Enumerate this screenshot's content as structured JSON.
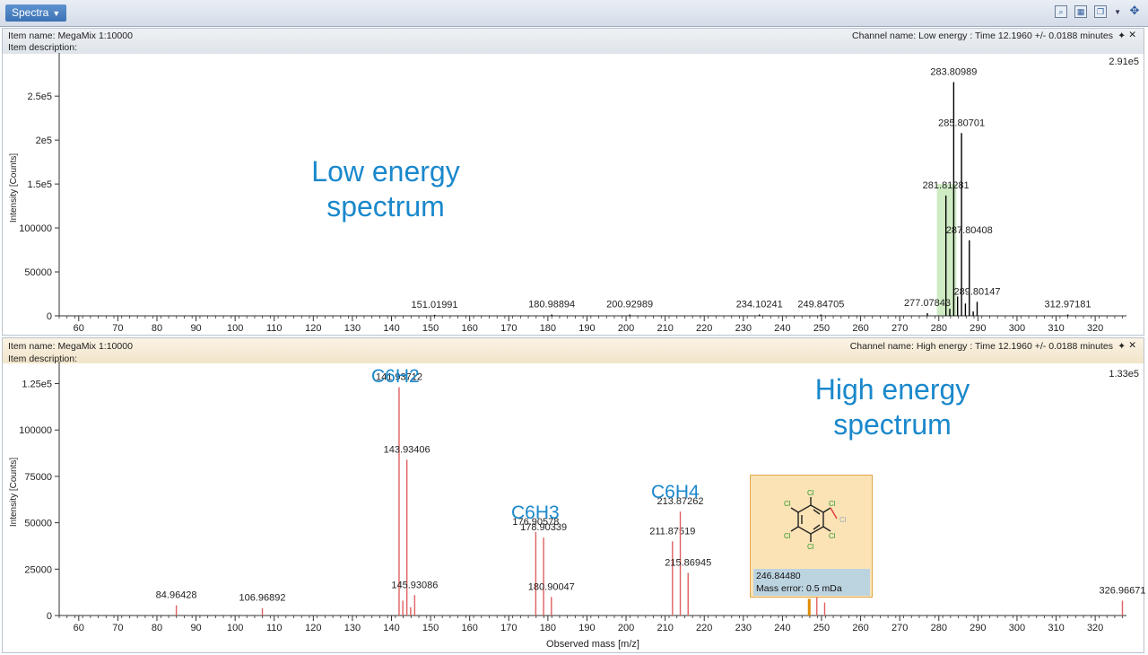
{
  "window": {
    "tab_label": "Spectra"
  },
  "panels": [
    {
      "item_name": "Item name: MegaMix 1:10000",
      "item_description": "Item description:",
      "channel": "Channel name: Low energy : Time 12.1960 +/- 0.0188 minutes"
    },
    {
      "item_name": "Item name: MegaMix 1:10000",
      "item_description": "Item description:",
      "channel": "Channel name: High energy : Time 12.1960 +/- 0.0188 minutes"
    }
  ],
  "annotations": {
    "low_energy": [
      "Low energy",
      "spectrum"
    ],
    "high_energy": [
      "High energy",
      "spectrum"
    ],
    "fragments": [
      {
        "label": "C6H2",
        "mass": 141.93712
      },
      {
        "label": "C6H3",
        "mass": 176.90578
      },
      {
        "label": "C6H4",
        "mass": 213.87262
      }
    ]
  },
  "popup": {
    "mass": "246.84480",
    "mass_error": "Mass error: 0.5 mDa",
    "accent": "#fbe3b6"
  },
  "colors": {
    "low_peaks": "#000000",
    "high_peaks": "#e06060",
    "annotation": "#1a88cc",
    "highlight": "#c6e8b8"
  },
  "chart_data": [
    {
      "type": "bar",
      "title": "",
      "xlabel": "",
      "ylabel": "Intensity [Counts]",
      "xlim": [
        55,
        328
      ],
      "ylim": [
        0,
        291000
      ],
      "max_label": "2.91e5",
      "x_ticks": [
        60,
        70,
        80,
        90,
        100,
        110,
        120,
        130,
        140,
        150,
        160,
        170,
        180,
        190,
        200,
        210,
        220,
        230,
        240,
        250,
        260,
        270,
        280,
        290,
        300,
        310,
        320
      ],
      "y_ticks": [
        {
          "value": 0,
          "label": "0"
        },
        {
          "value": 50000,
          "label": "50000"
        },
        {
          "value": 100000,
          "label": "100000"
        },
        {
          "value": 150000,
          "label": "1.5e5"
        },
        {
          "value": 200000,
          "label": "2e5"
        },
        {
          "value": 250000,
          "label": "2.5e5"
        }
      ],
      "highlight_range": [
        279.5,
        284.5
      ],
      "peaks": [
        {
          "x": 151.01991,
          "y": 1200,
          "label": "151.01991"
        },
        {
          "x": 180.98894,
          "y": 1500,
          "label": "180.98894"
        },
        {
          "x": 200.92989,
          "y": 1500,
          "label": "200.92989"
        },
        {
          "x": 234.10241,
          "y": 1500,
          "label": "234.10241"
        },
        {
          "x": 249.84705,
          "y": 1500,
          "label": "249.84705"
        },
        {
          "x": 277.07843,
          "y": 3000,
          "label": "277.07843"
        },
        {
          "x": 281.81281,
          "y": 137000,
          "label": "281.81281"
        },
        {
          "x": 282.8,
          "y": 8000
        },
        {
          "x": 283.80989,
          "y": 266000,
          "label": "283.80989"
        },
        {
          "x": 284.8,
          "y": 22000
        },
        {
          "x": 285.80701,
          "y": 208000,
          "label": "285.80701"
        },
        {
          "x": 286.8,
          "y": 14000
        },
        {
          "x": 287.80408,
          "y": 86000,
          "label": "287.80408"
        },
        {
          "x": 288.8,
          "y": 5000
        },
        {
          "x": 289.80147,
          "y": 16000,
          "label": "289.80147"
        },
        {
          "x": 312.97181,
          "y": 1500,
          "label": "312.97181"
        }
      ]
    },
    {
      "type": "bar",
      "title": "",
      "xlabel": "Observed mass [m/z]",
      "ylabel": "Intensity [Counts]",
      "xlim": [
        55,
        328
      ],
      "ylim": [
        0,
        133000
      ],
      "max_label": "1.33e5",
      "x_ticks": [
        60,
        70,
        80,
        90,
        100,
        110,
        120,
        130,
        140,
        150,
        160,
        170,
        180,
        190,
        200,
        210,
        220,
        230,
        240,
        250,
        260,
        270,
        280,
        290,
        300,
        310,
        320
      ],
      "y_ticks": [
        {
          "value": 0,
          "label": "0"
        },
        {
          "value": 25000,
          "label": "25000"
        },
        {
          "value": 50000,
          "label": "50000"
        },
        {
          "value": 75000,
          "label": "75000"
        },
        {
          "value": 100000,
          "label": "100000"
        },
        {
          "value": 125000,
          "label": "1.25e5"
        }
      ],
      "peaks": [
        {
          "x": 84.96428,
          "y": 5500,
          "label": "84.96428"
        },
        {
          "x": 106.96892,
          "y": 4000,
          "label": "106.96892"
        },
        {
          "x": 141.93712,
          "y": 123000,
          "label": "141.93712"
        },
        {
          "x": 142.9,
          "y": 8000
        },
        {
          "x": 143.93406,
          "y": 84000,
          "label": "143.93406"
        },
        {
          "x": 144.9,
          "y": 4500
        },
        {
          "x": 145.93086,
          "y": 11000,
          "label": "145.93086"
        },
        {
          "x": 176.90578,
          "y": 45000,
          "label": "176.90578"
        },
        {
          "x": 178.90339,
          "y": 42000,
          "label": "178.90339"
        },
        {
          "x": 180.90047,
          "y": 10000,
          "label": "180.90047"
        },
        {
          "x": 211.87519,
          "y": 40000,
          "label": "211.87519"
        },
        {
          "x": 213.87262,
          "y": 56000,
          "label": "213.87262"
        },
        {
          "x": 215.86945,
          "y": 23000,
          "label": "215.86945"
        },
        {
          "x": 246.8448,
          "y": 9000,
          "color": "#e08a00"
        },
        {
          "x": 248.8,
          "y": 12000
        },
        {
          "x": 250.8,
          "y": 7000
        },
        {
          "x": 326.96671,
          "y": 8000,
          "label": "326.96671"
        }
      ]
    }
  ]
}
